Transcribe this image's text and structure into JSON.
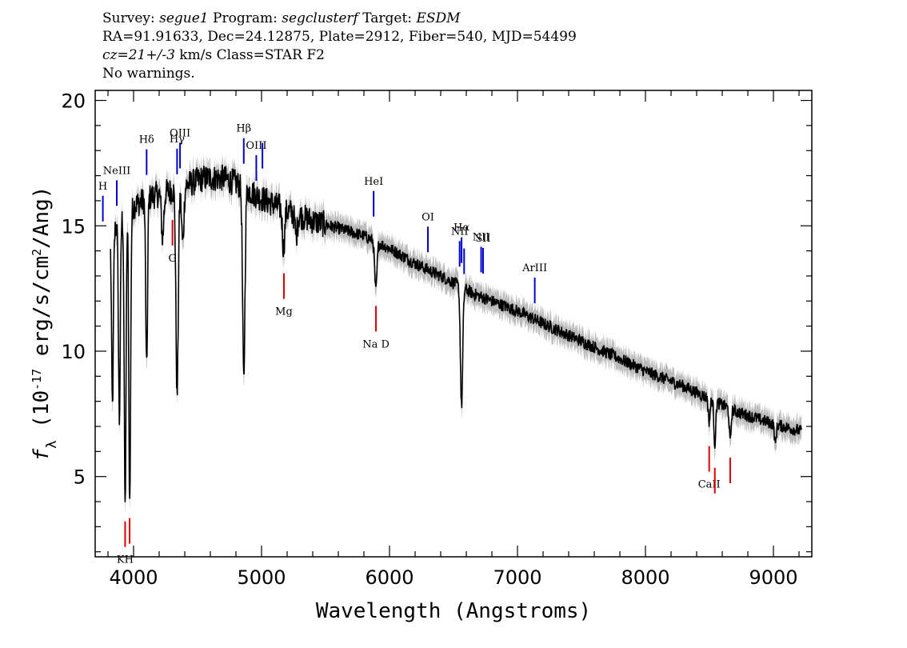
{
  "header": {
    "survey_label": "Survey:",
    "survey": "segue1",
    "program_label": "Program:",
    "program": "segclusterf",
    "target_label": "Target:",
    "target": "ESDM",
    "line2": "RA=91.91633, Dec=24.12875, Plate=2912, Fiber=540, MJD=54499",
    "cz": "cz=21+/-3",
    "line3_rest": "km/s  Class=STAR  F2",
    "line4": "No warnings."
  },
  "chart_data": {
    "type": "line",
    "title": "",
    "xlabel": "Wavelength (Angstroms)",
    "ylabel": "f_λ (10^-17 erg/s/cm^2/Ang)",
    "xlim": [
      3700,
      9300
    ],
    "ylim": [
      1.8,
      20.4
    ],
    "x_ticks": [
      4000,
      5000,
      6000,
      7000,
      8000,
      9000
    ],
    "y_ticks": [
      5,
      10,
      15,
      20
    ],
    "grid": false,
    "series": [
      {
        "color": "#000000",
        "error_color": "#bbbbbb",
        "continuum": [
          [
            3820,
            14.6
          ],
          [
            3900,
            15.3
          ],
          [
            4000,
            15.8
          ],
          [
            4150,
            16.2
          ],
          [
            4300,
            16.4
          ],
          [
            4400,
            16.6
          ],
          [
            4550,
            16.9
          ],
          [
            4700,
            16.9
          ],
          [
            4800,
            16.7
          ],
          [
            4900,
            16.4
          ],
          [
            5000,
            16.1
          ],
          [
            5200,
            15.6
          ],
          [
            5400,
            15.2
          ],
          [
            5600,
            14.9
          ],
          [
            5800,
            14.6
          ],
          [
            6000,
            14.1
          ],
          [
            6200,
            13.5
          ],
          [
            6400,
            13.0
          ],
          [
            6550,
            12.6
          ],
          [
            6650,
            12.3
          ],
          [
            6800,
            12.0
          ],
          [
            7000,
            11.6
          ],
          [
            7200,
            11.1
          ],
          [
            7500,
            10.4
          ],
          [
            7800,
            9.7
          ],
          [
            8000,
            9.2
          ],
          [
            8300,
            8.6
          ],
          [
            8500,
            8.1
          ],
          [
            8700,
            7.6
          ],
          [
            9000,
            7.1
          ],
          [
            9220,
            6.8
          ]
        ],
        "absorption_lines": [
          [
            3835,
            7.8
          ],
          [
            3889,
            7.2
          ],
          [
            3934,
            3.7
          ],
          [
            3970,
            3.9
          ],
          [
            4102,
            9.2
          ],
          [
            4227,
            14.5
          ],
          [
            4340,
            8.2
          ],
          [
            4384,
            14.3
          ],
          [
            4861,
            8.8
          ],
          [
            5172,
            14.1
          ],
          [
            5270,
            14.6
          ],
          [
            5893,
            12.4
          ],
          [
            6563,
            7.8
          ],
          [
            8498,
            7.2
          ],
          [
            8542,
            6.3
          ],
          [
            8662,
            6.4
          ],
          [
            9015,
            6.3
          ]
        ]
      }
    ],
    "annotations": [
      {
        "label": "H",
        "x": 3760,
        "color": "blue",
        "kind": "emission"
      },
      {
        "label": "NeIII",
        "x": 3869,
        "color": "blue",
        "kind": "emission"
      },
      {
        "label": "Hδ",
        "x": 4102,
        "color": "blue",
        "kind": "emission"
      },
      {
        "label": "Hγ",
        "x": 4340,
        "color": "blue",
        "kind": "emission"
      },
      {
        "label": "OIII",
        "x": 4363,
        "color": "blue",
        "kind": "emission"
      },
      {
        "label": "Hβ",
        "x": 4861,
        "color": "blue",
        "kind": "emission"
      },
      {
        "label": "OIII",
        "x": 4959,
        "color": "blue",
        "kind": "emission"
      },
      {
        "label": "",
        "x": 5007,
        "color": "blue",
        "kind": "emission"
      },
      {
        "label": "HeI",
        "x": 5876,
        "color": "blue",
        "kind": "emission"
      },
      {
        "label": "OI",
        "x": 6300,
        "color": "blue",
        "kind": "emission"
      },
      {
        "label": "NII",
        "x": 6548,
        "color": "blue",
        "kind": "emission"
      },
      {
        "label": "Hα",
        "x": 6563,
        "color": "blue",
        "kind": "emission"
      },
      {
        "label": "",
        "x": 6583,
        "color": "blue",
        "kind": "emission"
      },
      {
        "label": "NII",
        "x": 6716,
        "color": "blue",
        "kind": "emission"
      },
      {
        "label": "SII",
        "x": 6731,
        "color": "blue",
        "kind": "emission"
      },
      {
        "label": "ArIII",
        "x": 7135,
        "color": "blue",
        "kind": "emission"
      },
      {
        "label": "KH",
        "x": 3934,
        "color": "red",
        "kind": "absorption"
      },
      {
        "label": "",
        "x": 3969,
        "color": "red",
        "kind": "absorption"
      },
      {
        "label": "G",
        "x": 4304,
        "color": "red",
        "kind": "absorption"
      },
      {
        "label": "Mg",
        "x": 5175,
        "color": "red",
        "kind": "absorption"
      },
      {
        "label": "Na  D",
        "x": 5894,
        "color": "red",
        "kind": "absorption"
      },
      {
        "label": "CaII",
        "x": 8498,
        "color": "red",
        "kind": "absorption"
      },
      {
        "label": "",
        "x": 8542,
        "color": "red",
        "kind": "absorption"
      },
      {
        "label": "",
        "x": 8662,
        "color": "red",
        "kind": "absorption"
      }
    ]
  }
}
